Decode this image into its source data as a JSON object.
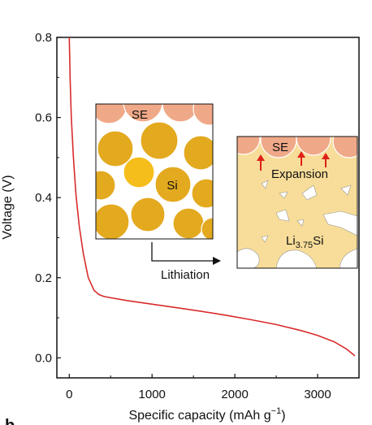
{
  "chart_data": {
    "type": "line",
    "xlabel_main": "Specific capacity (mAh g",
    "xlabel_sup": "−1",
    "xlabel_close": ")",
    "ylabel": "Voltage (V)",
    "xlim": [
      -150,
      3500
    ],
    "ylim": [
      -0.05,
      0.8
    ],
    "x_ticks": [
      0,
      1000,
      2000,
      3000
    ],
    "x_tick_labels": [
      "0",
      "1000",
      "2000",
      "3000"
    ],
    "y_ticks": [
      0.0,
      0.2,
      0.4,
      0.6,
      0.8
    ],
    "y_tick_labels": [
      "0.0",
      "0.2",
      "0.4",
      "0.6",
      "0.8"
    ],
    "series": [
      {
        "color": "#d92b2b",
        "x": [
          0,
          10,
          25,
          50,
          80,
          120,
          170,
          230,
          300,
          360,
          420,
          500,
          700,
          1000,
          1300,
          1600,
          1900,
          2200,
          2500,
          2800,
          3000,
          3200,
          3350,
          3450
        ],
        "y": [
          0.8,
          0.7,
          0.6,
          0.5,
          0.41,
          0.33,
          0.26,
          0.2,
          0.168,
          0.158,
          0.153,
          0.15,
          0.143,
          0.134,
          0.125,
          0.116,
          0.106,
          0.095,
          0.083,
          0.068,
          0.056,
          0.04,
          0.022,
          0.005
        ]
      }
    ],
    "grid": false
  },
  "panel_letter": "b",
  "insets": {
    "before": {
      "se_label": "SE",
      "si_label": "Si"
    },
    "after": {
      "se_label": "SE",
      "expansion_label": "Expansion",
      "product_main": "Li",
      "product_sub": "3.75",
      "product_tail": "Si"
    },
    "arrow_label": "Lithiation"
  },
  "colors": {
    "se": "#f0a988",
    "si": "#e3a91f",
    "si_bright": "#f6be1a",
    "lithiated": "#f7dd99",
    "curve": "#d92b2b",
    "arrow_red": "#e0201a"
  }
}
